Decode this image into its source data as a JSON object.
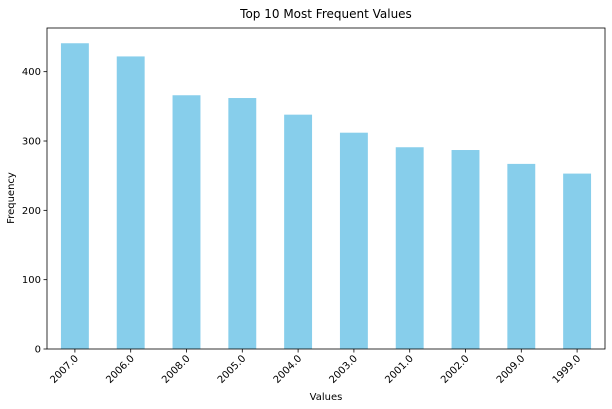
{
  "chart_data": {
    "type": "bar",
    "title": "Top 10 Most Frequent Values",
    "xlabel": "Values",
    "ylabel": "Frequency",
    "categories": [
      "2007.0",
      "2006.0",
      "2008.0",
      "2005.0",
      "2004.0",
      "2003.0",
      "2001.0",
      "2002.0",
      "2009.0",
      "1999.0"
    ],
    "values": [
      441,
      422,
      366,
      362,
      338,
      312,
      291,
      287,
      267,
      253
    ],
    "ylim": [
      0,
      463
    ],
    "yticks": [
      "0",
      "100",
      "200",
      "300",
      "400"
    ],
    "grid": false,
    "bar_color": "#87ceeb",
    "tick_label_rotation": -45
  }
}
